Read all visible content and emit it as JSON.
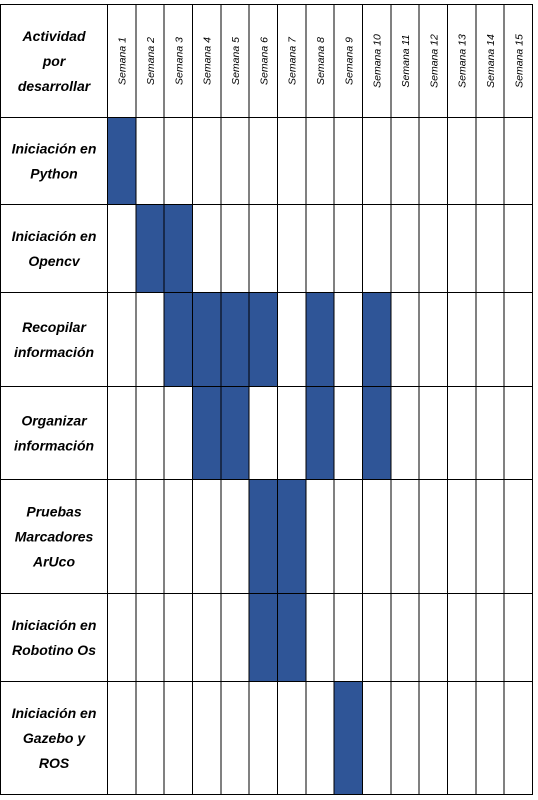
{
  "header": {
    "activity_label": [
      "Actividad",
      "por",
      "desarrollar"
    ]
  },
  "weeks": [
    "Semana 1",
    "Semana 2",
    "Semana 3",
    "Semana 4",
    "Semana 5",
    "Semana 6",
    "Semana 7",
    "Semana 8",
    "Semana 9",
    "Semana 10",
    "Semana 11",
    "Semana 12",
    "Semana 13",
    "Semana 14",
    "Semana 15"
  ],
  "activities": [
    {
      "label": [
        "Iniciación en",
        "Python"
      ],
      "weeks": [
        1
      ]
    },
    {
      "label": [
        "Iniciación en",
        "Opencv"
      ],
      "weeks": [
        2,
        3
      ]
    },
    {
      "label": [
        "Recopilar",
        "información"
      ],
      "weeks": [
        3,
        4,
        5,
        6,
        8,
        10
      ]
    },
    {
      "label": [
        "Organizar",
        "información"
      ],
      "weeks": [
        4,
        5,
        8,
        10
      ]
    },
    {
      "label": [
        "Pruebas",
        "Marcadores",
        "ArUco"
      ],
      "weeks": [
        6,
        7
      ]
    },
    {
      "label": [
        "Iniciación en",
        "Robotino Os"
      ],
      "weeks": [
        6,
        7
      ]
    },
    {
      "label": [
        "Iniciación en",
        "Gazebo y",
        "ROS"
      ],
      "weeks": [
        9
      ]
    }
  ],
  "colors": {
    "filled": "#2f5597",
    "grid": "#000000",
    "background": "#ffffff"
  }
}
